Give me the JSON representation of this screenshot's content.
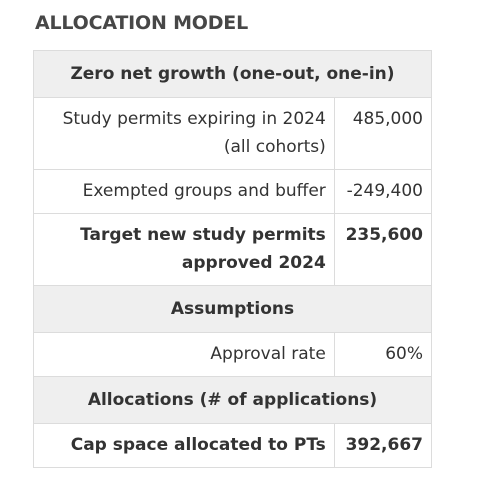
{
  "heading": "ALLOCATION MODEL",
  "table": {
    "sections": [
      {
        "title": "Zero net growth (one-out, one-in)",
        "rows": [
          {
            "label": "Study permits expiring in 2024 (all cohorts)",
            "value": "485,000",
            "bold": false
          },
          {
            "label": "Exempted groups and buffer",
            "value": "-249,400",
            "bold": false
          },
          {
            "label": "Target new study permits approved 2024",
            "value": "235,600",
            "bold": true
          }
        ]
      },
      {
        "title": "Assumptions",
        "rows": [
          {
            "label": "Approval rate",
            "value": "60%",
            "bold": false
          }
        ]
      },
      {
        "title": "Allocations (# of applications)",
        "rows": [
          {
            "label": "Cap space allocated to PTs",
            "value": "392,667",
            "bold": true
          }
        ]
      }
    ]
  }
}
